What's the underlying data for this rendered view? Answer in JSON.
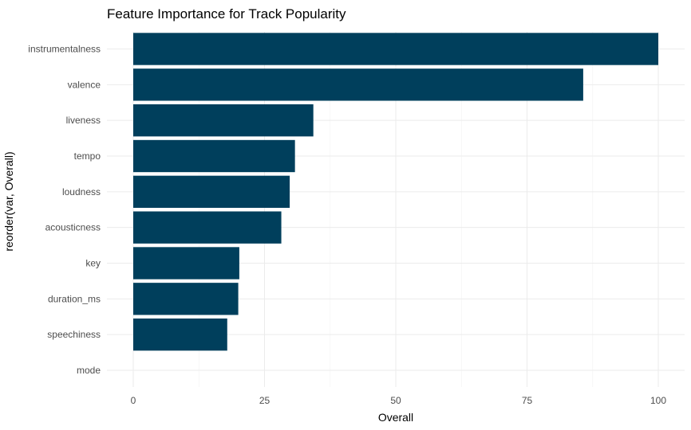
{
  "chart_data": {
    "type": "bar",
    "orientation": "horizontal",
    "title": "Feature Importance for Track Popularity",
    "xlabel": "Overall",
    "ylabel": "reorder(var, Overall)",
    "categories": [
      "instrumentalness",
      "valence",
      "liveness",
      "tempo",
      "loudness",
      "acousticness",
      "key",
      "duration_ms",
      "speechiness",
      "mode"
    ],
    "values": [
      100,
      85.7,
      34.3,
      30.8,
      29.8,
      28.2,
      20.2,
      20.0,
      17.9,
      0
    ],
    "xlim": [
      0,
      100
    ],
    "xticks": [
      0,
      25,
      50,
      75,
      100
    ],
    "grid": true,
    "bar_color": "#003f5c"
  }
}
